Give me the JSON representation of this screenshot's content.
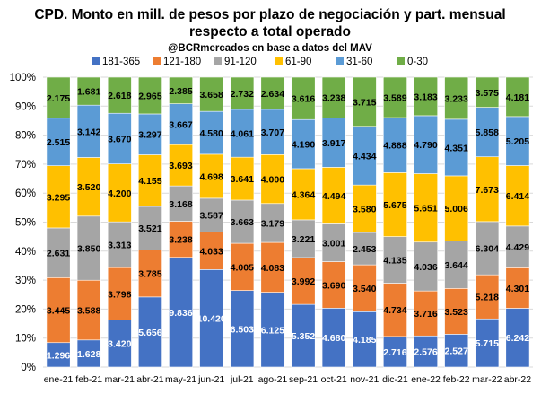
{
  "chart_data": {
    "type": "bar",
    "stacked": "percent",
    "title_line1": "CPD. Monto en mill. de pesos por plazo de negociación y part. mensual",
    "title_line2": "respecto a total operado",
    "subtitle": "@BCRmercados en base a datos del MAV",
    "categories": [
      "ene-21",
      "feb-21",
      "mar-21",
      "abr-21",
      "may-21",
      "jun-21",
      "jul-21",
      "ago-21",
      "sep-21",
      "oct-21",
      "nov-21",
      "dic-21",
      "ene-22",
      "feb-22",
      "mar-22",
      "abr-22"
    ],
    "y_ticks": [
      "0%",
      "10%",
      "20%",
      "30%",
      "40%",
      "50%",
      "60%",
      "70%",
      "80%",
      "90%",
      "100%"
    ],
    "ylim": [
      0,
      100
    ],
    "grid": true,
    "legend_position": "top",
    "series": [
      {
        "name": "181-365",
        "color": "#4472C4",
        "label_color": "#ffffff",
        "values": [
          1.296,
          1.628,
          3.42,
          5.656,
          9.836,
          10.42,
          6.503,
          6.125,
          5.352,
          4.68,
          4.185,
          2.716,
          2.576,
          2.527,
          5.715,
          6.242
        ],
        "labels": [
          "1.296",
          "1.628",
          "3.420",
          "5.656",
          "9.836",
          "10.420",
          "6.503",
          "6.125",
          "5.352",
          "4.680",
          "4.185",
          "2.716",
          "2.576",
          "2.527",
          "5.715",
          "6.242"
        ]
      },
      {
        "name": "121-180",
        "color": "#ED7D31",
        "label_color": "#000000",
        "values": [
          3.445,
          3.588,
          3.798,
          3.785,
          3.238,
          4.033,
          4.005,
          4.083,
          3.992,
          3.69,
          3.54,
          4.734,
          3.716,
          3.523,
          5.218,
          4.301
        ],
        "labels": [
          "3.445",
          "3.588",
          "3.798",
          "3.785",
          "3.238",
          "4.033",
          "4.005",
          "4.083",
          "3.992",
          "3.690",
          "3.540",
          "4.734",
          "3.716",
          "3.523",
          "5.218",
          "4.301"
        ]
      },
      {
        "name": "91-120",
        "color": "#A5A5A5",
        "label_color": "#000000",
        "values": [
          2.631,
          3.85,
          3.313,
          3.521,
          3.168,
          3.587,
          3.663,
          3.179,
          3.221,
          3.001,
          2.453,
          4.135,
          4.036,
          3.644,
          6.304,
          4.429
        ],
        "labels": [
          "2.631",
          "3.850",
          "3.313",
          "3.521",
          "3.168",
          "3.587",
          "3.663",
          "3.179",
          "3.221",
          "3.001",
          "2.453",
          "4.135",
          "4.036",
          "3.644",
          "6.304",
          "4.429"
        ]
      },
      {
        "name": "61-90",
        "color": "#FFC000",
        "label_color": "#000000",
        "values": [
          3.295,
          3.52,
          4.2,
          4.155,
          3.693,
          4.698,
          3.641,
          4.0,
          4.364,
          4.494,
          3.58,
          5.675,
          5.651,
          5.006,
          7.673,
          6.414
        ],
        "labels": [
          "3.295",
          "3.520",
          "4.200",
          "4.155",
          "3.693",
          "4.698",
          "3.641",
          "4.000",
          "4.364",
          "4.494",
          "3.580",
          "5.675",
          "5.651",
          "5.006",
          "7.673",
          "6.414"
        ]
      },
      {
        "name": "31-60",
        "color": "#5B9BD5",
        "label_color": "#000000",
        "values": [
          2.515,
          3.142,
          3.67,
          3.297,
          3.667,
          4.58,
          4.061,
          3.707,
          4.19,
          3.917,
          4.434,
          4.888,
          4.79,
          4.351,
          5.858,
          5.205
        ],
        "labels": [
          "2.515",
          "3.142",
          "3.670",
          "3.297",
          "3.667",
          "4.580",
          "4.061",
          "3.707",
          "4.190",
          "3.917",
          "4.434",
          "4.888",
          "4.790",
          "4.351",
          "5.858",
          "5.205"
        ]
      },
      {
        "name": "0-30",
        "color": "#70AD47",
        "label_color": "#000000",
        "values": [
          2.175,
          1.681,
          2.618,
          2.965,
          2.385,
          3.658,
          2.732,
          2.634,
          3.616,
          3.238,
          3.715,
          3.589,
          3.183,
          3.233,
          3.575,
          4.181
        ],
        "labels": [
          "2.175",
          "1.681",
          "2.618",
          "2.965",
          "2.385",
          "3.658",
          "2.732",
          "2.634",
          "3.616",
          "3.238",
          "3.715",
          "3.589",
          "3.183",
          "3.233",
          "3.575",
          "4.181"
        ]
      }
    ]
  }
}
